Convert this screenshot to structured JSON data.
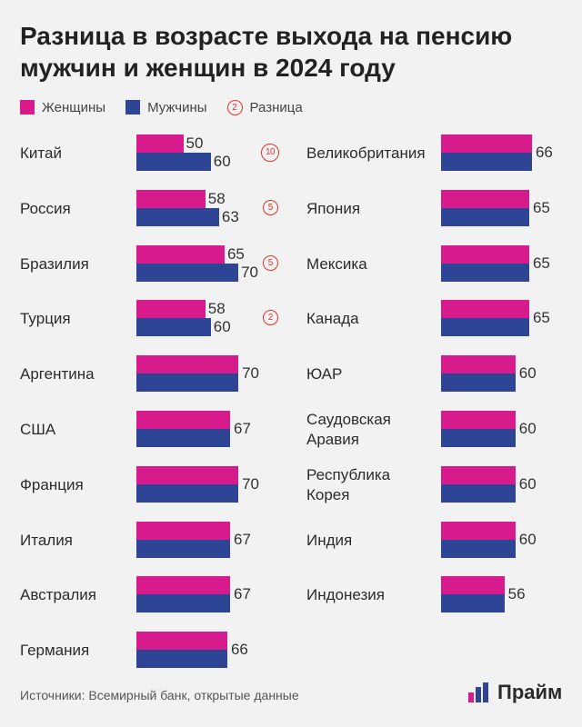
{
  "title": "Разница в возрасте выхода на пенсию мужчин и женщин в 2024 году",
  "legend": {
    "women": "Женщины",
    "men": "Мужчины",
    "diff": "Разница",
    "diff_example": "2"
  },
  "colors": {
    "women": "#d81b8c",
    "men": "#2e4596",
    "diff": "#e0352b"
  },
  "source": "Источники: Всемирный банк, открытые данные",
  "logo": "Прайм",
  "chart_data": {
    "type": "bar",
    "series_names": [
      "Женщины",
      "Мужчины"
    ],
    "left": [
      {
        "country": "Китай",
        "women": 50,
        "men": 60,
        "diff": "10"
      },
      {
        "country": "Россия",
        "women": 58,
        "men": 63,
        "diff": "5"
      },
      {
        "country": "Бразилия",
        "women": 65,
        "men": 70,
        "diff": "5"
      },
      {
        "country": "Турция",
        "women": 58,
        "men": 60,
        "diff": "2"
      },
      {
        "country": "Аргентина",
        "women": 70,
        "men": 70,
        "label": "70"
      },
      {
        "country": "США",
        "women": 67,
        "men": 67,
        "label": "67"
      },
      {
        "country": "Франция",
        "women": 70,
        "men": 70,
        "label": "70"
      },
      {
        "country": "Италия",
        "women": 67,
        "men": 67,
        "label": "67"
      },
      {
        "country": "Австралия",
        "women": 67,
        "men": 67,
        "label": "67"
      },
      {
        "country": "Германия",
        "women": 66,
        "men": 66,
        "label": "66"
      }
    ],
    "right": [
      {
        "country": "Великобритания",
        "women": 66,
        "men": 66,
        "label": "66"
      },
      {
        "country": "Япония",
        "women": 65,
        "men": 65,
        "label": "65"
      },
      {
        "country": "Мексика",
        "women": 65,
        "men": 65,
        "label": "65"
      },
      {
        "country": "Канада",
        "women": 65,
        "men": 65,
        "label": "65"
      },
      {
        "country": "ЮАР",
        "women": 60,
        "men": 60,
        "label": "60"
      },
      {
        "country": "Саудовская Аравия",
        "women": 60,
        "men": 60,
        "label": "60"
      },
      {
        "country": "Республика Корея",
        "women": 60,
        "men": 60,
        "label": "60"
      },
      {
        "country": "Индия",
        "women": 60,
        "men": 60,
        "label": "60"
      },
      {
        "country": "Индонезия",
        "women": 56,
        "men": 56,
        "label": "56"
      }
    ]
  }
}
